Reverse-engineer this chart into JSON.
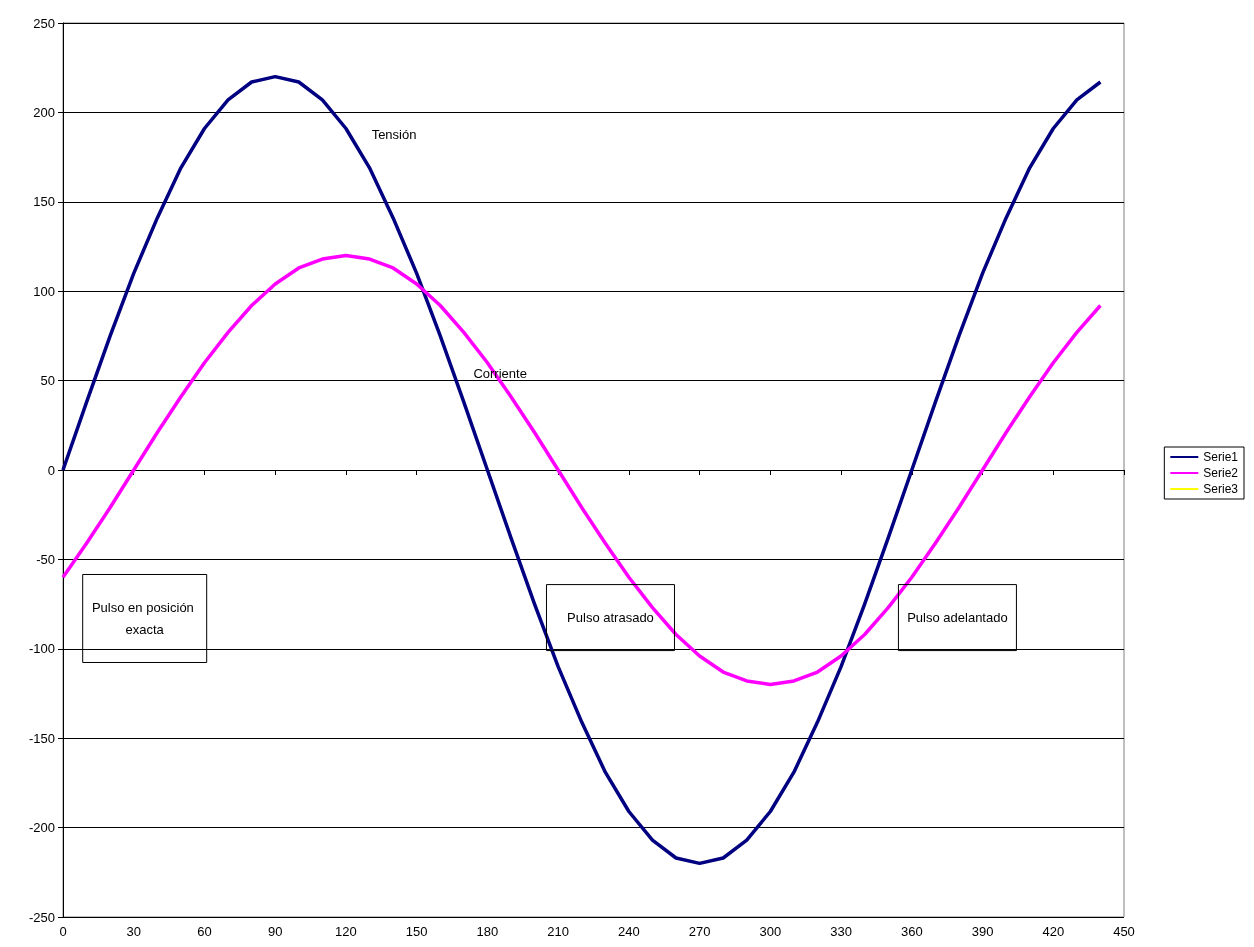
{
  "chart_data": {
    "type": "line",
    "x": [
      0,
      10,
      20,
      30,
      40,
      50,
      60,
      70,
      80,
      90,
      100,
      110,
      120,
      130,
      140,
      150,
      160,
      170,
      180,
      190,
      200,
      210,
      220,
      230,
      240,
      250,
      260,
      270,
      280,
      290,
      300,
      310,
      320,
      330,
      340,
      350,
      360,
      370,
      380,
      390,
      400,
      410,
      420,
      430,
      440
    ],
    "series": [
      {
        "name": "Serie1",
        "color": "#000080",
        "values": [
          0,
          38,
          75,
          110,
          141,
          169,
          191,
          207,
          217,
          220,
          217,
          207,
          191,
          169,
          141,
          110,
          75,
          38,
          0,
          -38,
          -75,
          -110,
          -141,
          -169,
          -191,
          -207,
          -217,
          -220,
          -217,
          -207,
          -191,
          -169,
          -141,
          -110,
          -75,
          -38,
          0,
          38,
          75,
          110,
          141,
          169,
          191,
          207,
          217
        ]
      },
      {
        "name": "Serie2",
        "color": "#ff00ff",
        "values": [
          -60,
          -41,
          -21,
          0,
          21,
          41,
          60,
          77,
          92,
          104,
          113,
          118,
          120,
          118,
          113,
          104,
          92,
          77,
          60,
          41,
          21,
          0,
          -21,
          -41,
          -60,
          -77,
          -92,
          -104,
          -113,
          -118,
          -120,
          -118,
          -113,
          -104,
          -92,
          -77,
          -60,
          -41,
          -21,
          0,
          21,
          41,
          60,
          77,
          92
        ]
      },
      {
        "name": "Serie3",
        "color": "#ffff00",
        "values": [
          null,
          null,
          null,
          null,
          null,
          null,
          null,
          null,
          null,
          null,
          null,
          null,
          null,
          null,
          null,
          null,
          null,
          null,
          null,
          null,
          null,
          null,
          null,
          null,
          null,
          null,
          null,
          null,
          null,
          null,
          null,
          null,
          null,
          null,
          null,
          null,
          null,
          null,
          null,
          null,
          null,
          null,
          null,
          null,
          null
        ]
      }
    ],
    "xlim": [
      0,
      450
    ],
    "xticks": [
      0,
      30,
      60,
      90,
      120,
      150,
      180,
      210,
      240,
      270,
      300,
      330,
      360,
      390,
      420,
      450
    ],
    "ylim": [
      -250,
      250
    ],
    "yticks": [
      -250,
      -200,
      -150,
      -100,
      -50,
      0,
      50,
      100,
      150,
      200,
      250
    ],
    "grid": "y",
    "legend": "right",
    "marker": "none",
    "line_style": "solid",
    "annotations": [
      "Tensión",
      "Corriente",
      "Pulso en posición exacta",
      "Pulso atrasado",
      "Pulso adelantado"
    ]
  }
}
